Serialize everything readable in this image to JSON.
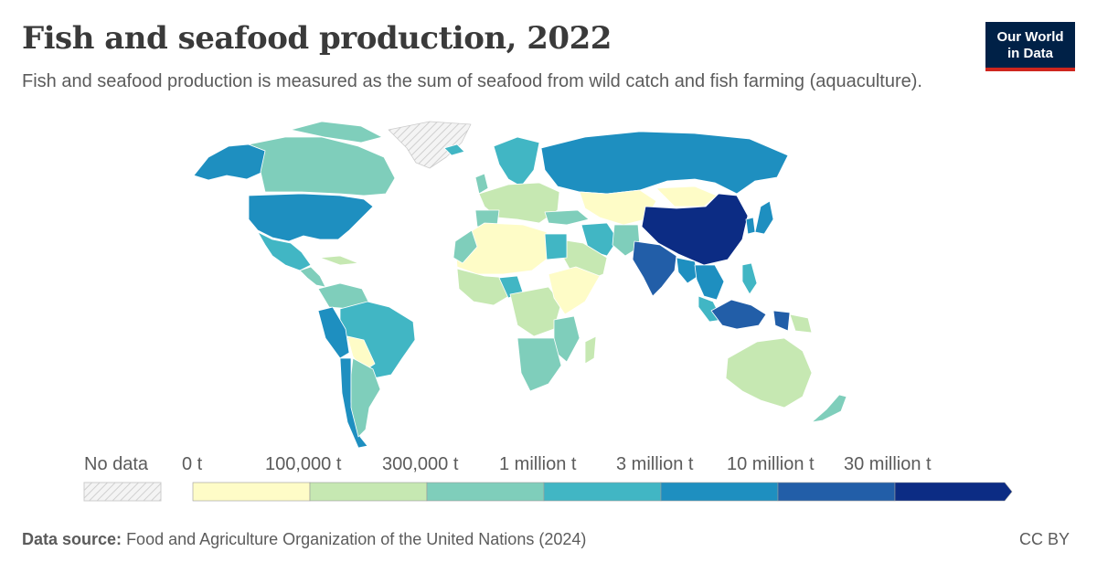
{
  "header": {
    "title": "Fish and seafood production, 2022",
    "subtitle": "Fish and seafood production is measured as the sum of seafood from wild catch and fish farming (aquaculture).",
    "logo_line1": "Our World",
    "logo_line2": "in Data"
  },
  "legend": {
    "no_data_label": "No data",
    "ticks": [
      "0 t",
      "100,000 t",
      "300,000 t",
      "1 million t",
      "3 million t",
      "10 million t",
      "30 million t"
    ],
    "colors": [
      "#fefcc7",
      "#c6e8b2",
      "#7fcebb",
      "#41b6c4",
      "#1e8fc0",
      "#225ea8",
      "#0c2c84"
    ],
    "no_data_color": "#e6e6e6"
  },
  "footer": {
    "source_label": "Data source:",
    "source_text": "Food and Agriculture Organization of the United Nations (2024)",
    "license": "CC BY"
  }
}
